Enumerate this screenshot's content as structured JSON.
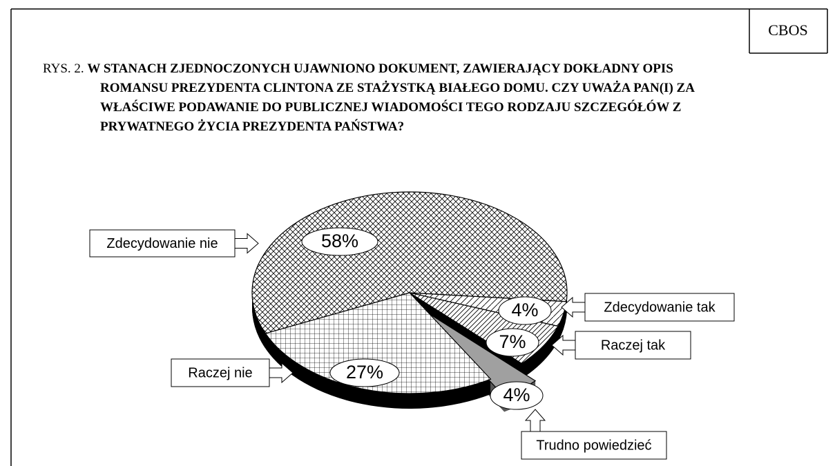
{
  "chart_data": {
    "type": "pie",
    "source": "CBOS",
    "figure_label": "RYS. 2.",
    "title": "W STANACH ZJEDNOCZONYCH UJAWNIONO DOKUMENT, ZAWIERAJĄCY DOKŁADNY OPIS ROMANSU PREZYDENTA CLINTONA ZE STAŻYSTKĄ BIAŁEGO DOMU. CZY UWAŻA PAN(I) ZA WŁAŚCIWE PODAWANIE DO PUBLICZNEJ WIADOMOŚCI TEGO RODZAJU SZCZEGÓŁÓW Z PRYWATNEGO ŻYCIA PREZYDENTA PAŃSTWA?",
    "categories": [
      "Zdecydowanie tak",
      "Raczej tak",
      "Trudno powiedzieć",
      "Raczej nie",
      "Zdecydowanie nie"
    ],
    "values": [
      4,
      7,
      4,
      27,
      58
    ],
    "value_labels": [
      "4%",
      "7%",
      "4%",
      "27%",
      "58%"
    ],
    "exploded": "Trudno powiedzieć"
  }
}
